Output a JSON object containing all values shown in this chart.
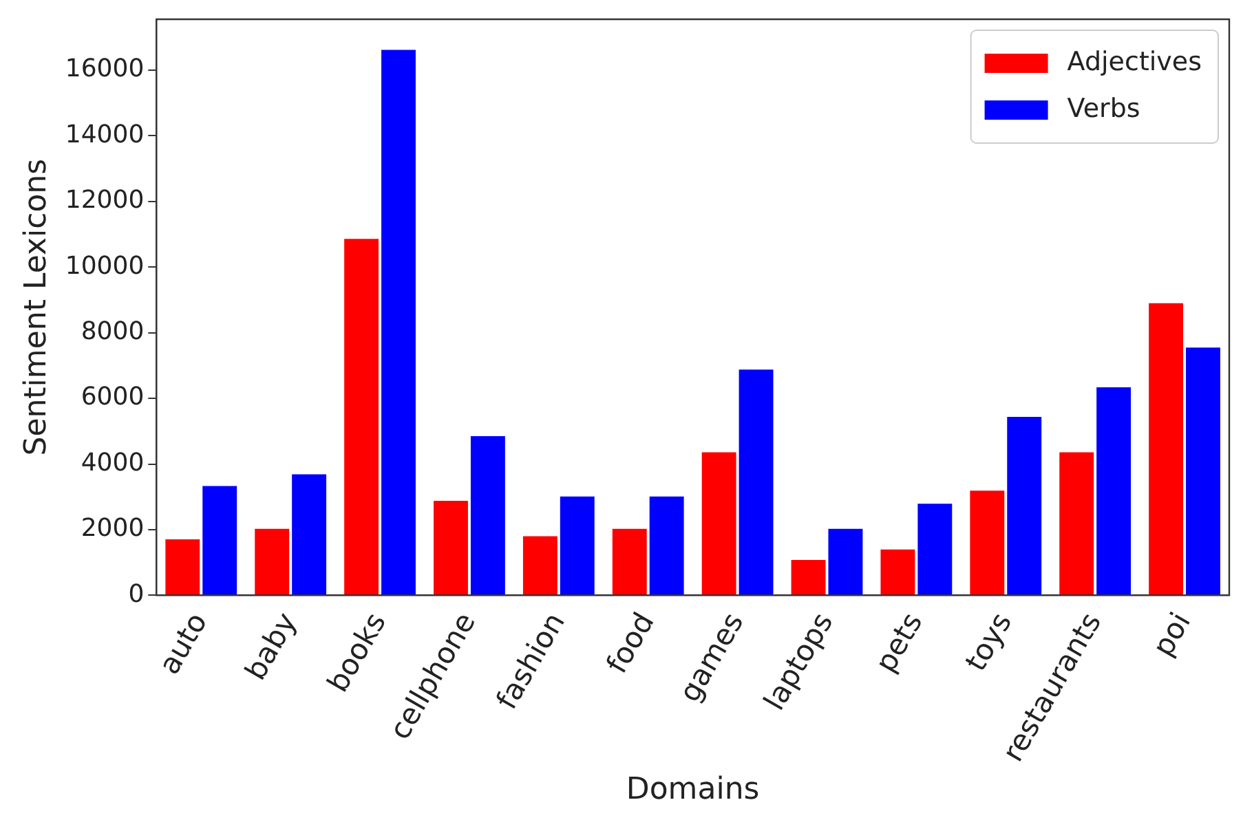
{
  "chart_data": {
    "type": "bar",
    "xlabel": "Domains",
    "ylabel": "Sentiment Lexicons",
    "categories": [
      "auto",
      "baby",
      "books",
      "cellphone",
      "fashion",
      "food",
      "games",
      "laptops",
      "pets",
      "toys",
      "restaurants",
      "poi"
    ],
    "series": [
      {
        "name": "Adjectives",
        "color": "#ff0000",
        "values": [
          1750,
          2070,
          10900,
          2920,
          1840,
          2070,
          4400,
          1120,
          1440,
          3230,
          4400,
          8940
        ]
      },
      {
        "name": "Verbs",
        "color": "#0000ff",
        "values": [
          3370,
          3730,
          16660,
          4890,
          3050,
          3050,
          6920,
          2070,
          2830,
          5480,
          6380,
          7590
        ]
      }
    ],
    "ylim": [
      0,
      17550
    ],
    "yticks": [
      0,
      2000,
      4000,
      6000,
      8000,
      10000,
      12000,
      14000,
      16000
    ],
    "grid": false,
    "legend": "top right"
  }
}
